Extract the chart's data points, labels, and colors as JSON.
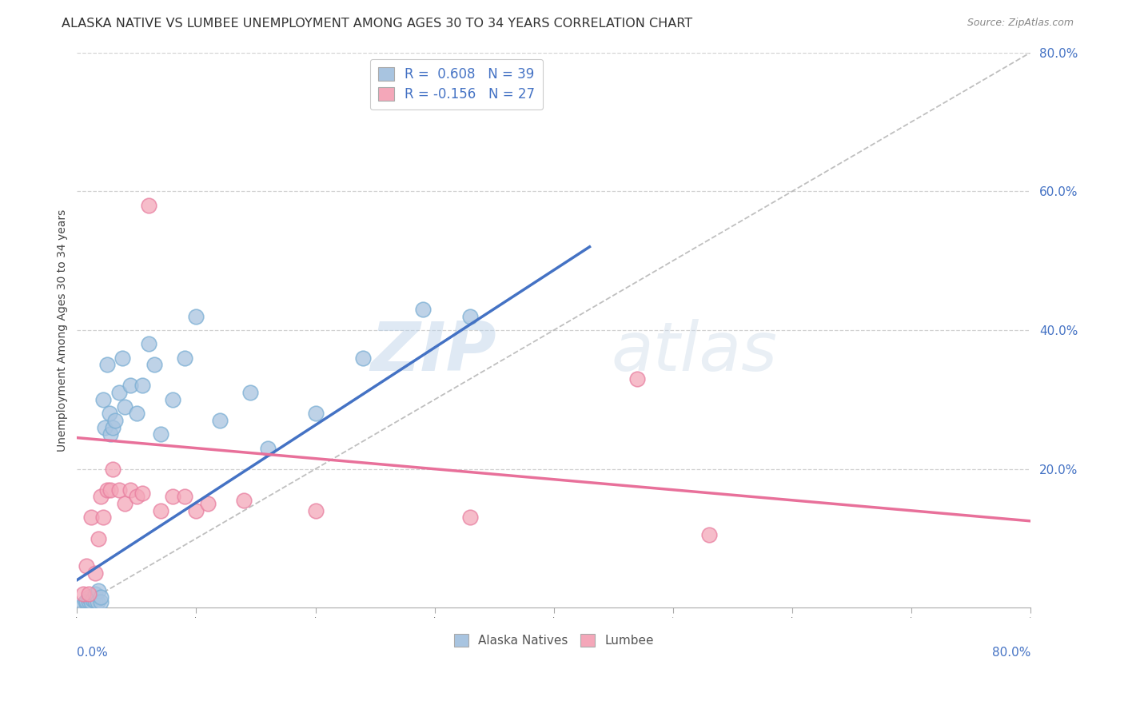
{
  "title": "ALASKA NATIVE VS LUMBEE UNEMPLOYMENT AMONG AGES 30 TO 34 YEARS CORRELATION CHART",
  "source": "Source: ZipAtlas.com",
  "ylabel": "Unemployment Among Ages 30 to 34 years",
  "xlim": [
    0.0,
    0.8
  ],
  "ylim": [
    0.0,
    0.8
  ],
  "yticks": [
    0.2,
    0.4,
    0.6,
    0.8
  ],
  "xticks": [],
  "alaska_R": 0.608,
  "alaska_N": 39,
  "lumbee_R": -0.156,
  "lumbee_N": 27,
  "alaska_color": "#a8c4e0",
  "alaska_edge_color": "#7bafd4",
  "lumbee_color": "#f4a7b9",
  "lumbee_edge_color": "#e87fa0",
  "alaska_line_color": "#4472c4",
  "lumbee_line_color": "#e8709a",
  "diagonal_color": "#b0b0b0",
  "background_color": "#ffffff",
  "grid_color": "#cccccc",
  "tick_label_color": "#4472c4",
  "legend_text_color": "#4472c4",
  "alaska_scatter_x": [
    0.005,
    0.007,
    0.008,
    0.01,
    0.01,
    0.012,
    0.013,
    0.015,
    0.015,
    0.017,
    0.018,
    0.02,
    0.02,
    0.022,
    0.023,
    0.025,
    0.027,
    0.028,
    0.03,
    0.032,
    0.035,
    0.038,
    0.04,
    0.045,
    0.05,
    0.055,
    0.06,
    0.065,
    0.07,
    0.08,
    0.09,
    0.1,
    0.12,
    0.145,
    0.16,
    0.2,
    0.24,
    0.29,
    0.33
  ],
  "alaska_scatter_y": [
    0.005,
    0.008,
    0.01,
    0.01,
    0.015,
    0.008,
    0.012,
    0.01,
    0.02,
    0.008,
    0.025,
    0.008,
    0.015,
    0.3,
    0.26,
    0.35,
    0.28,
    0.25,
    0.26,
    0.27,
    0.31,
    0.36,
    0.29,
    0.32,
    0.28,
    0.32,
    0.38,
    0.35,
    0.25,
    0.3,
    0.36,
    0.42,
    0.27,
    0.31,
    0.23,
    0.28,
    0.36,
    0.43,
    0.42
  ],
  "lumbee_scatter_x": [
    0.005,
    0.008,
    0.01,
    0.012,
    0.015,
    0.018,
    0.02,
    0.022,
    0.025,
    0.028,
    0.03,
    0.035,
    0.04,
    0.045,
    0.05,
    0.055,
    0.06,
    0.07,
    0.08,
    0.09,
    0.1,
    0.11,
    0.14,
    0.2,
    0.33,
    0.47,
    0.53
  ],
  "lumbee_scatter_y": [
    0.02,
    0.06,
    0.02,
    0.13,
    0.05,
    0.1,
    0.16,
    0.13,
    0.17,
    0.17,
    0.2,
    0.17,
    0.15,
    0.17,
    0.16,
    0.165,
    0.58,
    0.14,
    0.16,
    0.16,
    0.14,
    0.15,
    0.155,
    0.14,
    0.13,
    0.33,
    0.105
  ],
  "alaska_trend_x": [
    0.0,
    0.43
  ],
  "alaska_trend_y": [
    0.04,
    0.52
  ],
  "lumbee_trend_x": [
    0.0,
    0.8
  ],
  "lumbee_trend_y": [
    0.245,
    0.125
  ],
  "watermark_zip": "ZIP",
  "watermark_atlas": "atlas",
  "title_fontsize": 11.5,
  "axis_label_fontsize": 10,
  "tick_fontsize": 11,
  "legend_fontsize": 12,
  "source_fontsize": 9
}
